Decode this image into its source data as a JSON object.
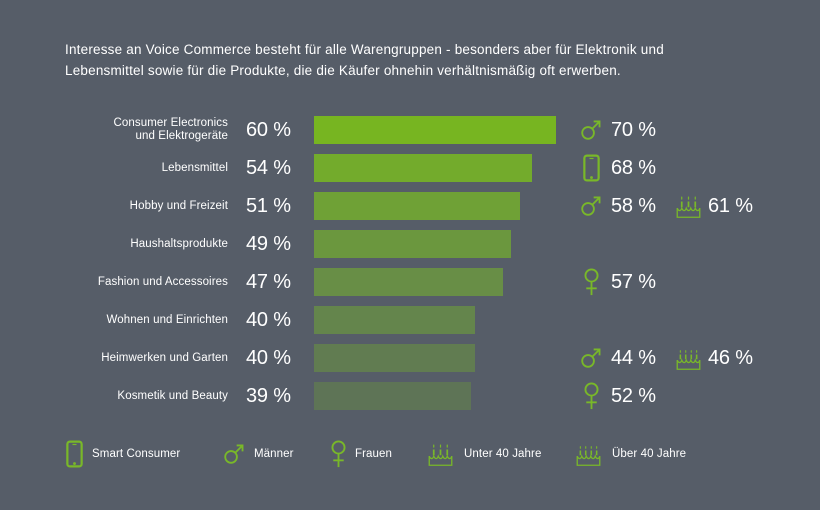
{
  "colors": {
    "background": "#565d68",
    "accent": "#79b829",
    "text": "#ffffff"
  },
  "title": {
    "line1": "Interesse an Voice Commerce besteht für alle Warengruppen - besonders aber für Elektronik und",
    "line2": "Lebensmittel sowie für die Produkte, die die Käufer ohnehin verhältnismäßig oft erwerben."
  },
  "chart_data": {
    "type": "bar",
    "orientation": "horizontal",
    "unit": "%",
    "xlim": [
      0,
      65
    ],
    "grid": false,
    "legend_position": "bottom",
    "title": "Interesse an Voice Commerce besteht für alle Warengruppen - besonders aber für Elektronik und Lebensmittel sowie für die Produkte, die die Käufer ohnehin verhältnismäßig oft erwerben.",
    "categories": [
      "Consumer Electronics und Elektrogeräte",
      "Lebensmittel",
      "Hobby und Freizeit",
      "Haushaltsprodukte",
      "Fashion und Accessoires",
      "Wohnen und Einrichten",
      "Heimwerken und Garten",
      "Kosmetik und Beauty"
    ],
    "values": [
      60,
      54,
      51,
      49,
      47,
      40,
      40,
      39
    ],
    "rows": [
      {
        "category": "Consumer Electronics und Elektrogeräte",
        "label_lines": [
          "Consumer Electronics",
          "und Elektrogeräte"
        ],
        "value": 60,
        "value_label": "60 %",
        "bar_color": "#77b521",
        "annotations": [
          {
            "series": "Männer",
            "icon": "male",
            "value": 70,
            "value_label": "70 %"
          }
        ]
      },
      {
        "category": "Lebensmittel",
        "label_lines": [
          "Lebensmittel"
        ],
        "value": 54,
        "value_label": "54 %",
        "bar_color": "#73ab2c",
        "annotations": [
          {
            "series": "Smart Consumer",
            "icon": "smartphone",
            "value": 68,
            "value_label": "68 %"
          }
        ]
      },
      {
        "category": "Hobby und Freizeit",
        "label_lines": [
          "Hobby und Freizeit"
        ],
        "value": 51,
        "value_label": "51 %",
        "bar_color": "#6fa136",
        "annotations": [
          {
            "series": "Männer",
            "icon": "male",
            "value": 58,
            "value_label": "58 %"
          },
          {
            "series": "Unter 40 Jahre",
            "icon": "cake-3-candles",
            "value": 61,
            "value_label": "61 %"
          }
        ]
      },
      {
        "category": "Haushaltsprodukte",
        "label_lines": [
          "Haushaltsprodukte"
        ],
        "value": 49,
        "value_label": "49 %",
        "bar_color": "#6b973e",
        "annotations": []
      },
      {
        "category": "Fashion und Accessoires",
        "label_lines": [
          "Fashion und Accessoires"
        ],
        "value": 47,
        "value_label": "47 %",
        "bar_color": "#688e46",
        "annotations": [
          {
            "series": "Frauen",
            "icon": "female",
            "value": 57,
            "value_label": "57 %"
          }
        ]
      },
      {
        "category": "Wohnen und Einrichten",
        "label_lines": [
          "Wohnen und Einrichten"
        ],
        "value": 40,
        "value_label": "40 %",
        "bar_color": "#64854c",
        "annotations": []
      },
      {
        "category": "Heimwerken und Garten",
        "label_lines": [
          "Heimwerken und Garten"
        ],
        "value": 40,
        "value_label": "40 %",
        "bar_color": "#617c51",
        "annotations": [
          {
            "series": "Männer",
            "icon": "male",
            "value": 44,
            "value_label": "44 %"
          },
          {
            "series": "Über 40 Jahre",
            "icon": "cake-4-candles",
            "value": 46,
            "value_label": "46 %"
          }
        ]
      },
      {
        "category": "Kosmetik und Beauty",
        "label_lines": [
          "Kosmetik und Beauty"
        ],
        "value": 39,
        "value_label": "39 %",
        "bar_color": "#5e7456",
        "annotations": [
          {
            "series": "Frauen",
            "icon": "female",
            "value": 52,
            "value_label": "52 %"
          }
        ]
      }
    ]
  },
  "legend": {
    "items": [
      {
        "icon": "smartphone",
        "label": "Smart Consumer"
      },
      {
        "icon": "male",
        "label": "Männer"
      },
      {
        "icon": "female",
        "label": "Frauen"
      },
      {
        "icon": "cake-3-candles",
        "label": "Unter 40 Jahre"
      },
      {
        "icon": "cake-4-candles",
        "label": "Über 40 Jahre"
      }
    ]
  }
}
